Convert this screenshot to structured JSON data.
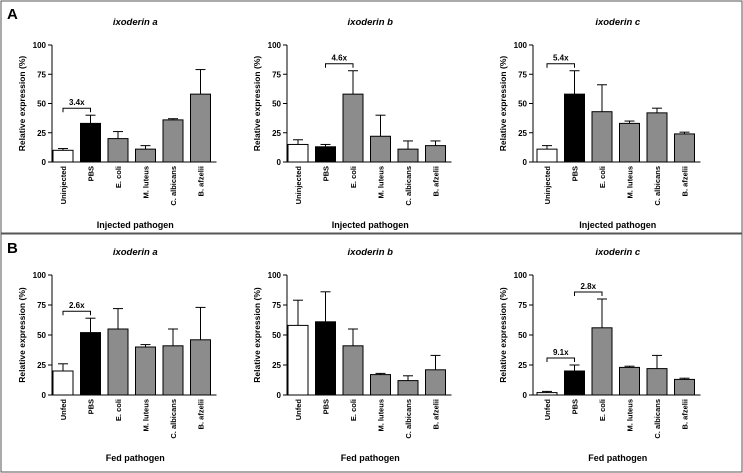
{
  "panels": [
    {
      "letter": "A",
      "xlabel": "Injected pathogen"
    },
    {
      "letter": "B",
      "xlabel": "Fed pathogen"
    }
  ],
  "colors": {
    "control": "#ffffff",
    "pbs": "#000000",
    "pathogen": "#8c8c8c",
    "frame": "#555555"
  },
  "chart_data": [
    {
      "type": "bar",
      "panel": "A",
      "title": "ixoderin a",
      "xlabel": "Injected pathogen",
      "ylabel": "Relative expression (%)",
      "ylim": [
        0,
        100
      ],
      "yticks": [
        0,
        25,
        50,
        75,
        100
      ],
      "categories": [
        "Uninjected",
        "PBS",
        "E. coli",
        "M. luteus",
        "C. albicans",
        "B. afzelii"
      ],
      "values": [
        10,
        33,
        20,
        11,
        36,
        58
      ],
      "errors": [
        1.5,
        7,
        6,
        3,
        1,
        21
      ],
      "annotations": [
        {
          "label": "3.4x",
          "from": 0,
          "to": 1
        }
      ]
    },
    {
      "type": "bar",
      "panel": "A",
      "title": "ixoderin b",
      "xlabel": "Injected pathogen",
      "ylabel": "Relative expression (%)",
      "ylim": [
        0,
        100
      ],
      "yticks": [
        0,
        25,
        50,
        75,
        100
      ],
      "categories": [
        "Uninjected",
        "PBS",
        "E. coli",
        "M. luteus",
        "C. albicans",
        "B. afzelii"
      ],
      "values": [
        15,
        13,
        58,
        22,
        11,
        14
      ],
      "errors": [
        4,
        2,
        20,
        18,
        7,
        4
      ],
      "annotations": [
        {
          "label": "4.6x",
          "from": 1,
          "to": 2
        }
      ]
    },
    {
      "type": "bar",
      "panel": "A",
      "title": "ixoderin c",
      "xlabel": "Injected pathogen",
      "ylabel": "Relative expression (%)",
      "ylim": [
        0,
        100
      ],
      "yticks": [
        0,
        25,
        50,
        75,
        100
      ],
      "categories": [
        "Uninjected",
        "PBS",
        "E. coli",
        "M. luteus",
        "C. albicans",
        "B. afzelii"
      ],
      "values": [
        11,
        58,
        43,
        33,
        42,
        24
      ],
      "errors": [
        3,
        20,
        23,
        2,
        4,
        1.5
      ],
      "annotations": [
        {
          "label": "5.4x",
          "from": 0,
          "to": 1
        }
      ]
    },
    {
      "type": "bar",
      "panel": "B",
      "title": "ixoderin a",
      "xlabel": "Fed pathogen",
      "ylabel": "Relative expression (%)",
      "ylim": [
        0,
        100
      ],
      "yticks": [
        0,
        25,
        50,
        75,
        100
      ],
      "categories": [
        "Unfed",
        "PBS",
        "E. coli",
        "M. luteus",
        "C. albicans",
        "B. afzelii"
      ],
      "values": [
        20,
        52,
        55,
        40,
        41,
        46
      ],
      "errors": [
        6,
        12,
        17,
        2,
        14,
        27
      ],
      "annotations": [
        {
          "label": "2.6x",
          "from": 0,
          "to": 1
        }
      ]
    },
    {
      "type": "bar",
      "panel": "B",
      "title": "ixoderin b",
      "xlabel": "Fed pathogen",
      "ylabel": "Relative expression (%)",
      "ylim": [
        0,
        100
      ],
      "yticks": [
        0,
        25,
        50,
        75,
        100
      ],
      "categories": [
        "Unfed",
        "PBS",
        "E. coli",
        "M. luteus",
        "C. albicans",
        "B. afzelii"
      ],
      "values": [
        58,
        61,
        41,
        17,
        12,
        21
      ],
      "errors": [
        21,
        25,
        14,
        1,
        4,
        12
      ],
      "annotations": []
    },
    {
      "type": "bar",
      "panel": "B",
      "title": "ixoderin c",
      "xlabel": "Fed pathogen",
      "ylabel": "Relative expression (%)",
      "ylim": [
        0,
        100
      ],
      "yticks": [
        0,
        25,
        50,
        75,
        100
      ],
      "categories": [
        "Unfed",
        "PBS",
        "E. coli",
        "M. luteus",
        "C. albicans",
        "B. afzelii"
      ],
      "values": [
        2,
        20,
        56,
        23,
        22,
        13
      ],
      "errors": [
        1,
        5,
        24,
        1,
        11,
        1
      ],
      "annotations": [
        {
          "label": "9.1x",
          "from": 0,
          "to": 1
        },
        {
          "label": "2.8x",
          "from": 1,
          "to": 2
        }
      ]
    }
  ]
}
